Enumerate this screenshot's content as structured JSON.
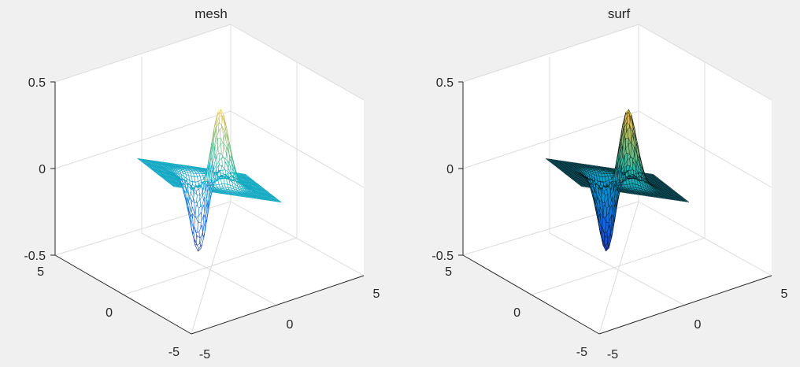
{
  "chart_data": [
    {
      "type": "mesh",
      "title": "mesh",
      "function": "z = x*exp(-x^2 - y^2) style surface with a positive peak and negative trough",
      "x_range": [
        -5,
        5
      ],
      "y_range": [
        -5,
        5
      ],
      "z_range": [
        -0.5,
        0.5
      ],
      "z_ticks": [
        -0.5,
        0,
        0.5
      ],
      "x_ticks": [
        -5,
        0,
        5
      ],
      "y_ticks": [
        -5,
        0,
        5
      ],
      "grid": true,
      "colormap": "parula",
      "peak": {
        "x": 0.7,
        "y": -0.7,
        "z": 0.43
      },
      "trough": {
        "x": -0.7,
        "y": 0.7,
        "z": -0.43
      },
      "plateau_z": 0
    },
    {
      "type": "surf",
      "title": "surf",
      "function": "z = x*exp(-x^2 - y^2) style surface with a positive peak and negative trough",
      "x_range": [
        -5,
        5
      ],
      "y_range": [
        -5,
        5
      ],
      "z_range": [
        -0.5,
        0.5
      ],
      "z_ticks": [
        -0.5,
        0,
        0.5
      ],
      "x_ticks": [
        -5,
        0,
        5
      ],
      "y_ticks": [
        -5,
        0,
        5
      ],
      "grid": true,
      "colormap": "parula",
      "peak": {
        "x": 0.7,
        "y": -0.7,
        "z": 0.43
      },
      "trough": {
        "x": -0.7,
        "y": 0.7,
        "z": -0.43
      },
      "plateau_z": 0
    }
  ],
  "labels": {
    "left_title": "mesh",
    "right_title": "surf",
    "z_top": "0.5",
    "z_mid": "0",
    "z_bot": "-0.5",
    "x_min": "-5",
    "x_mid": "0",
    "x_max": "5",
    "y_min": "-5",
    "y_mid": "0",
    "y_max": "5"
  },
  "colors": {
    "background": "#f0f0f0",
    "axes_bg": "#ffffff",
    "axis": "#262626",
    "grid": "#dcdcdc",
    "mesh_plateau": "#35c4b4",
    "surf_plateau": "#2a9d8a",
    "peak": "#f9e43b",
    "trough": "#2c3bd0"
  }
}
